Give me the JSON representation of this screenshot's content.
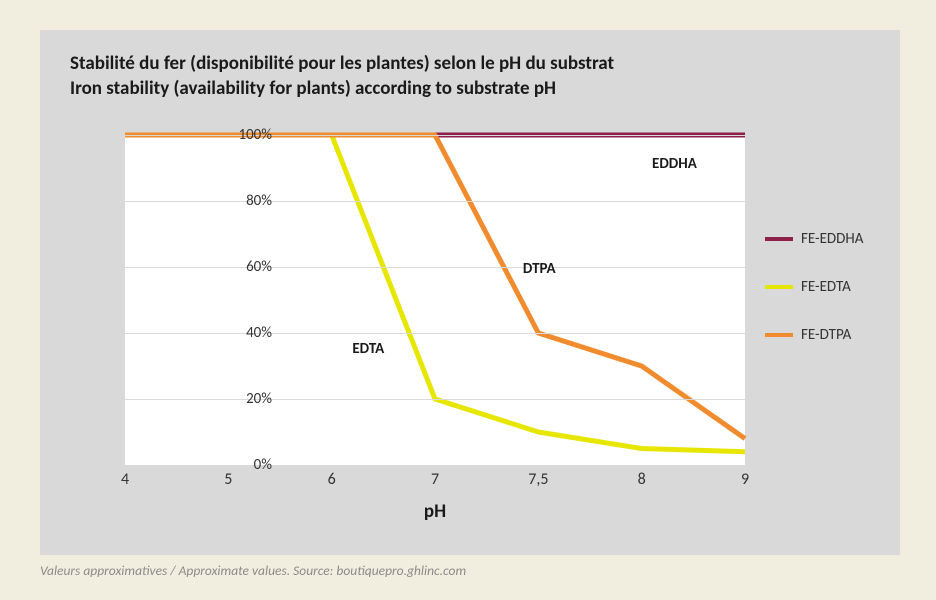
{
  "chart": {
    "type": "line",
    "title_line1": "Stabilité du fer (disponibilité pour les plantes) selon le pH du substrat",
    "title_line2": "Iron stability (availability for plants) according to substrate pH",
    "title_fontsize": 19,
    "background_color": "#f2eedf",
    "panel_color": "#d9d9d9",
    "plot_bg_color": "#ffffff",
    "grid_color": "#d9d9d9",
    "text_color": "#1a1a1a",
    "x_axis": {
      "title": "pH",
      "categories": [
        "4",
        "5",
        "6",
        "7",
        "7,5",
        "8",
        "9"
      ],
      "label_fontsize": 16,
      "title_fontsize": 19
    },
    "y_axis": {
      "min": 0,
      "max": 100,
      "tick_step": 20,
      "tick_labels": [
        "0%",
        "20%",
        "40%",
        "60%",
        "80%",
        "100%"
      ],
      "label_fontsize": 15
    },
    "series": [
      {
        "name": "FE-EDDHA",
        "inline_label": "EDDHA",
        "inline_label_pos": {
          "cat_index": 5.1,
          "y": 94
        },
        "color": "#8d1f4b",
        "line_width": 5,
        "values": [
          100,
          100,
          100,
          100,
          100,
          100,
          100
        ]
      },
      {
        "name": "FE-EDTA",
        "inline_label": "EDTA",
        "inline_label_pos": {
          "cat_index": 2.2,
          "y": 38
        },
        "color": "#e6e600",
        "line_width": 5,
        "values": [
          100,
          100,
          100,
          20,
          10,
          5,
          4
        ]
      },
      {
        "name": "FE-DTPA",
        "inline_label": "DTPA",
        "inline_label_pos": {
          "cat_index": 3.85,
          "y": 62
        },
        "color": "#f08c2e",
        "line_width": 5,
        "values": [
          100,
          100,
          100,
          100,
          40,
          30,
          8
        ]
      }
    ],
    "legend": {
      "fontsize": 15,
      "swatch_height": 4
    }
  },
  "footnote": "Valeurs approximatives / Approximate values. Source: boutiquepro.ghlinc.com"
}
